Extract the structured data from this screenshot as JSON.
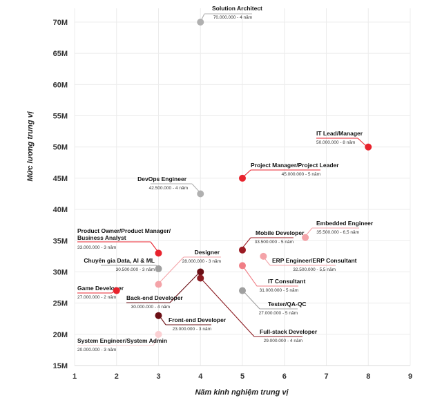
{
  "chart_data": {
    "type": "scatter",
    "xlabel": "Năm kinh nghiệm trung vị",
    "ylabel": "Mức lương trung vị",
    "xlim": [
      1,
      9
    ],
    "ylim": [
      15,
      70
    ],
    "x_ticks": [
      "1",
      "2",
      "3",
      "4",
      "5",
      "6",
      "7",
      "8",
      "9"
    ],
    "y_ticks": [
      "15M",
      "20M",
      "25M",
      "30M",
      "35M",
      "40M",
      "45M",
      "50M",
      "55M",
      "60M",
      "65M",
      "70M"
    ],
    "grid": true,
    "points": [
      {
        "name": "Solution Architect",
        "sub": "70.000.000 - 4 năm",
        "x": 4,
        "y": 70,
        "color": "#b0b0b0"
      },
      {
        "name": "IT Lead/Manager",
        "sub": "50.000.000 - 8 năm",
        "x": 8,
        "y": 50,
        "color": "#e8232d"
      },
      {
        "name": "Project Manager/Project Leader",
        "sub": "45.000.000 - 5 năm",
        "x": 5,
        "y": 45,
        "color": "#e8232d"
      },
      {
        "name": "DevOps Engineer",
        "sub": "42.500.000 - 4 năm",
        "x": 4,
        "y": 42.5,
        "color": "#b0b0b0"
      },
      {
        "name": "Embedded Engineer",
        "sub": "35.500.000 - 6,5 năm",
        "x": 6.5,
        "y": 35.5,
        "color": "#f4a3a8"
      },
      {
        "name": "Product Owner/Product Manager/ Business Analyst",
        "sub": "33.000.000 - 3 năm",
        "x": 3,
        "y": 33,
        "color": "#e8232d"
      },
      {
        "name": "Mobile Developer",
        "sub": "33.500.000 - 5 năm",
        "x": 5,
        "y": 33.5,
        "color": "#9b1b23"
      },
      {
        "name": "ERP Engineer/ERP Consultant",
        "sub": "32.500.000 - 5,5 năm",
        "x": 5.5,
        "y": 32.5,
        "color": "#f4a3a8"
      },
      {
        "name": "Chuyên gia Data, AI & ML",
        "sub": "30.500.000 - 3 năm",
        "x": 3,
        "y": 30.5,
        "color": "#a0a0a0"
      },
      {
        "name": "IT Consultant",
        "sub": "31.000.000 - 5 năm",
        "x": 5,
        "y": 31,
        "color": "#f07e86"
      },
      {
        "name": "Designer",
        "sub": "28.000.000 - 3 năm",
        "x": 3,
        "y": 28,
        "color": "#f4a3a8"
      },
      {
        "name": "Game Developer",
        "sub": "27.000.000 - 2 năm",
        "x": 2,
        "y": 27,
        "color": "#e8232d"
      },
      {
        "name": "Back-end Developer",
        "sub": "30.000.000 - 4 năm",
        "x": 4,
        "y": 30,
        "color": "#6b0f15"
      },
      {
        "name": "Tester/QA-QC",
        "sub": "27.000.000 - 5 năm",
        "x": 5,
        "y": 27,
        "color": "#a0a0a0"
      },
      {
        "name": "Full-stack Developer",
        "sub": "29.000.000 - 4 năm",
        "x": 4,
        "y": 29,
        "color": "#8b1a20"
      },
      {
        "name": "Front-end Developer",
        "sub": "23.000.000 - 3 năm",
        "x": 3,
        "y": 23,
        "color": "#6b0f15"
      },
      {
        "name": "System Engineer/System Admin",
        "sub": "20.000.000 - 3 năm",
        "x": 3,
        "y": 20,
        "color": "#fbd0d3"
      }
    ]
  }
}
